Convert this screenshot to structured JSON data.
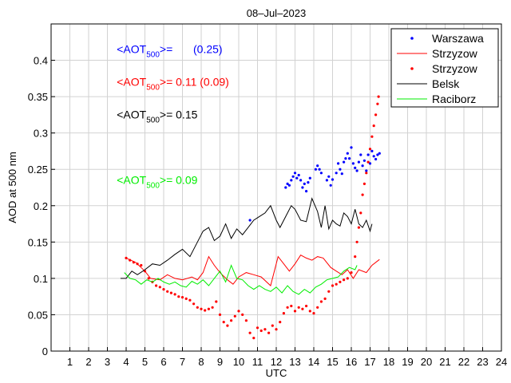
{
  "chart_data": {
    "type": "line",
    "title": "08–Jul–2023",
    "xlabel": "UTC",
    "ylabel": "AOD at 500 nm",
    "xlim": [
      0,
      24
    ],
    "ylim": [
      0,
      0.45
    ],
    "x_ticks": [
      1,
      2,
      3,
      4,
      5,
      6,
      7,
      8,
      9,
      10,
      11,
      12,
      13,
      14,
      15,
      16,
      17,
      18,
      19,
      20,
      21,
      22,
      23,
      24
    ],
    "y_ticks": [
      0,
      0.05,
      0.1,
      0.15,
      0.2,
      0.25,
      0.3,
      0.35,
      0.4
    ],
    "grid": true,
    "legend_position": "top-right",
    "annotations": [
      {
        "prefix": "<AOT",
        "sub": "500",
        "suffix": ">=",
        "value": "(0.25)",
        "color": "#0000ff",
        "x": 3.5,
        "y": 0.41
      },
      {
        "prefix": "<AOT",
        "sub": "500",
        "suffix": ">= 0.11 (0.09)",
        "value": "",
        "color": "#ff0000",
        "x": 3.5,
        "y": 0.365
      },
      {
        "prefix": "<AOT",
        "sub": "500",
        "suffix": ">= 0.15",
        "value": "",
        "color": "#000000",
        "x": 3.5,
        "y": 0.32
      },
      {
        "prefix": "<AOT",
        "sub": "500",
        "suffix": ">= 0.09",
        "value": "",
        "color": "#00ee00",
        "x": 3.5,
        "y": 0.23
      }
    ],
    "series": [
      {
        "name": "Warszawa",
        "style": "dots",
        "color": "#0000ff",
        "points": [
          [
            10.6,
            0.18
          ],
          [
            12.5,
            0.225
          ],
          [
            12.6,
            0.23
          ],
          [
            12.7,
            0.228
          ],
          [
            12.8,
            0.235
          ],
          [
            12.9,
            0.24
          ],
          [
            13.0,
            0.245
          ],
          [
            13.1,
            0.238
          ],
          [
            13.2,
            0.242
          ],
          [
            13.3,
            0.235
          ],
          [
            13.4,
            0.225
          ],
          [
            13.5,
            0.23
          ],
          [
            13.6,
            0.22
          ],
          [
            13.7,
            0.232
          ],
          [
            13.8,
            0.238
          ],
          [
            14.1,
            0.25
          ],
          [
            14.2,
            0.255
          ],
          [
            14.3,
            0.25
          ],
          [
            14.4,
            0.245
          ],
          [
            14.7,
            0.235
          ],
          [
            14.8,
            0.24
          ],
          [
            14.9,
            0.228
          ],
          [
            15.0,
            0.236
          ],
          [
            15.2,
            0.245
          ],
          [
            15.3,
            0.258
          ],
          [
            15.4,
            0.25
          ],
          [
            15.5,
            0.244
          ],
          [
            15.6,
            0.26
          ],
          [
            15.7,
            0.265
          ],
          [
            15.8,
            0.272
          ],
          [
            15.9,
            0.265
          ],
          [
            16.0,
            0.28
          ],
          [
            16.1,
            0.258
          ],
          [
            16.2,
            0.252
          ],
          [
            16.3,
            0.248
          ],
          [
            16.4,
            0.26
          ],
          [
            16.5,
            0.27
          ],
          [
            16.6,
            0.255
          ],
          [
            16.7,
            0.262
          ],
          [
            16.8,
            0.248
          ],
          [
            16.9,
            0.27
          ],
          [
            17.0,
            0.258
          ],
          [
            17.1,
            0.275
          ],
          [
            17.2,
            0.268
          ],
          [
            17.3,
            0.264
          ],
          [
            17.4,
            0.27
          ],
          [
            17.5,
            0.272
          ]
        ]
      },
      {
        "name": "Strzyzow",
        "style": "line",
        "color": "#ff0000",
        "points": [
          [
            4.0,
            0.128
          ],
          [
            4.5,
            0.122
          ],
          [
            5.0,
            0.11
          ],
          [
            5.3,
            0.1
          ],
          [
            5.8,
            0.098
          ],
          [
            6.2,
            0.105
          ],
          [
            6.6,
            0.1
          ],
          [
            7.0,
            0.098
          ],
          [
            7.5,
            0.102
          ],
          [
            7.8,
            0.098
          ],
          [
            8.1,
            0.108
          ],
          [
            8.4,
            0.13
          ],
          [
            8.7,
            0.118
          ],
          [
            9.0,
            0.108
          ],
          [
            9.4,
            0.098
          ],
          [
            9.7,
            0.092
          ],
          [
            10.0,
            0.102
          ],
          [
            10.4,
            0.108
          ],
          [
            10.8,
            0.105
          ],
          [
            11.2,
            0.102
          ],
          [
            11.7,
            0.09
          ],
          [
            12.1,
            0.13
          ],
          [
            12.4,
            0.12
          ],
          [
            12.7,
            0.11
          ],
          [
            13.0,
            0.12
          ],
          [
            13.3,
            0.132
          ],
          [
            13.6,
            0.128
          ],
          [
            13.9,
            0.125
          ],
          [
            14.2,
            0.13
          ],
          [
            14.5,
            0.128
          ],
          [
            14.9,
            0.115
          ],
          [
            15.2,
            0.11
          ],
          [
            15.5,
            0.105
          ],
          [
            15.8,
            0.112
          ],
          [
            16.1,
            0.1
          ],
          [
            16.4,
            0.112
          ],
          [
            16.8,
            0.108
          ],
          [
            17.1,
            0.118
          ],
          [
            17.5,
            0.126
          ]
        ]
      },
      {
        "name": "Strzyzow",
        "style": "dots",
        "color": "#ff0000",
        "points": [
          [
            4.0,
            0.128
          ],
          [
            4.2,
            0.125
          ],
          [
            4.4,
            0.122
          ],
          [
            4.6,
            0.12
          ],
          [
            4.8,
            0.118
          ],
          [
            5.0,
            0.11
          ],
          [
            5.2,
            0.1
          ],
          [
            5.4,
            0.095
          ],
          [
            5.6,
            0.09
          ],
          [
            5.8,
            0.088
          ],
          [
            6.0,
            0.085
          ],
          [
            6.2,
            0.082
          ],
          [
            6.4,
            0.08
          ],
          [
            6.6,
            0.078
          ],
          [
            6.8,
            0.075
          ],
          [
            7.0,
            0.074
          ],
          [
            7.2,
            0.072
          ],
          [
            7.4,
            0.07
          ],
          [
            7.6,
            0.065
          ],
          [
            7.8,
            0.06
          ],
          [
            8.0,
            0.058
          ],
          [
            8.2,
            0.056
          ],
          [
            8.4,
            0.058
          ],
          [
            8.6,
            0.06
          ],
          [
            8.8,
            0.068
          ],
          [
            9.0,
            0.05
          ],
          [
            9.2,
            0.04
          ],
          [
            9.4,
            0.035
          ],
          [
            9.6,
            0.042
          ],
          [
            9.8,
            0.048
          ],
          [
            10.0,
            0.055
          ],
          [
            10.2,
            0.05
          ],
          [
            10.4,
            0.042
          ],
          [
            10.6,
            0.025
          ],
          [
            10.8,
            0.018
          ],
          [
            11.0,
            0.032
          ],
          [
            11.2,
            0.028
          ],
          [
            11.4,
            0.03
          ],
          [
            11.6,
            0.025
          ],
          [
            11.8,
            0.035
          ],
          [
            12.0,
            0.03
          ],
          [
            12.2,
            0.04
          ],
          [
            12.4,
            0.052
          ],
          [
            12.6,
            0.06
          ],
          [
            12.8,
            0.062
          ],
          [
            13.0,
            0.055
          ],
          [
            13.2,
            0.06
          ],
          [
            13.4,
            0.058
          ],
          [
            13.6,
            0.062
          ],
          [
            13.8,
            0.055
          ],
          [
            14.0,
            0.052
          ],
          [
            14.2,
            0.06
          ],
          [
            14.4,
            0.068
          ],
          [
            14.6,
            0.072
          ],
          [
            14.8,
            0.082
          ],
          [
            15.0,
            0.09
          ],
          [
            15.2,
            0.092
          ],
          [
            15.4,
            0.095
          ],
          [
            15.6,
            0.098
          ],
          [
            15.8,
            0.1
          ],
          [
            16.0,
            0.108
          ],
          [
            16.2,
            0.13
          ],
          [
            16.3,
            0.15
          ],
          [
            16.4,
            0.17
          ],
          [
            16.5,
            0.19
          ],
          [
            16.6,
            0.215
          ],
          [
            16.7,
            0.23
          ],
          [
            16.8,
            0.245
          ],
          [
            16.9,
            0.26
          ],
          [
            17.0,
            0.278
          ],
          [
            17.1,
            0.295
          ],
          [
            17.2,
            0.31
          ],
          [
            17.3,
            0.325
          ],
          [
            17.4,
            0.34
          ],
          [
            17.45,
            0.35
          ]
        ]
      },
      {
        "name": "Belsk",
        "style": "line",
        "color": "#000000",
        "points": [
          [
            3.7,
            0.1
          ],
          [
            4.0,
            0.1
          ],
          [
            4.3,
            0.11
          ],
          [
            4.6,
            0.105
          ],
          [
            5.0,
            0.112
          ],
          [
            5.4,
            0.12
          ],
          [
            5.8,
            0.118
          ],
          [
            6.2,
            0.125
          ],
          [
            6.6,
            0.133
          ],
          [
            7.0,
            0.14
          ],
          [
            7.4,
            0.13
          ],
          [
            7.8,
            0.15
          ],
          [
            8.1,
            0.165
          ],
          [
            8.4,
            0.17
          ],
          [
            8.7,
            0.152
          ],
          [
            9.0,
            0.158
          ],
          [
            9.3,
            0.175
          ],
          [
            9.6,
            0.155
          ],
          [
            9.9,
            0.168
          ],
          [
            10.2,
            0.16
          ],
          [
            10.5,
            0.17
          ],
          [
            10.8,
            0.18
          ],
          [
            11.1,
            0.185
          ],
          [
            11.4,
            0.19
          ],
          [
            11.7,
            0.2
          ],
          [
            12.0,
            0.18
          ],
          [
            12.2,
            0.17
          ],
          [
            12.5,
            0.185
          ],
          [
            12.8,
            0.2
          ],
          [
            13.0,
            0.195
          ],
          [
            13.3,
            0.18
          ],
          [
            13.6,
            0.178
          ],
          [
            13.9,
            0.21
          ],
          [
            14.2,
            0.192
          ],
          [
            14.4,
            0.17
          ],
          [
            14.6,
            0.2
          ],
          [
            14.8,
            0.168
          ],
          [
            15.0,
            0.18
          ],
          [
            15.2,
            0.175
          ],
          [
            15.4,
            0.172
          ],
          [
            15.6,
            0.19
          ],
          [
            15.8,
            0.185
          ],
          [
            16.0,
            0.175
          ],
          [
            16.2,
            0.195
          ],
          [
            16.4,
            0.175
          ],
          [
            16.6,
            0.17
          ],
          [
            16.8,
            0.18
          ],
          [
            17.0,
            0.165
          ],
          [
            17.1,
            0.175
          ]
        ]
      },
      {
        "name": "Raciborz",
        "style": "line",
        "color": "#00ee00",
        "points": [
          [
            3.9,
            0.108
          ],
          [
            4.2,
            0.1
          ],
          [
            4.5,
            0.098
          ],
          [
            4.8,
            0.092
          ],
          [
            5.1,
            0.098
          ],
          [
            5.4,
            0.095
          ],
          [
            5.7,
            0.1
          ],
          [
            6.0,
            0.095
          ],
          [
            6.3,
            0.092
          ],
          [
            6.6,
            0.095
          ],
          [
            6.9,
            0.09
          ],
          [
            7.2,
            0.088
          ],
          [
            7.5,
            0.096
          ],
          [
            7.8,
            0.092
          ],
          [
            8.1,
            0.098
          ],
          [
            8.4,
            0.09
          ],
          [
            8.7,
            0.1
          ],
          [
            9.0,
            0.11
          ],
          [
            9.3,
            0.095
          ],
          [
            9.6,
            0.118
          ],
          [
            9.9,
            0.1
          ],
          [
            10.2,
            0.098
          ],
          [
            10.5,
            0.09
          ],
          [
            10.8,
            0.085
          ],
          [
            11.1,
            0.09
          ],
          [
            11.4,
            0.085
          ],
          [
            11.7,
            0.082
          ],
          [
            12.0,
            0.088
          ],
          [
            12.3,
            0.08
          ],
          [
            12.6,
            0.09
          ],
          [
            12.9,
            0.082
          ],
          [
            13.2,
            0.078
          ],
          [
            13.5,
            0.085
          ],
          [
            13.8,
            0.08
          ],
          [
            14.1,
            0.088
          ],
          [
            14.4,
            0.092
          ],
          [
            14.7,
            0.098
          ],
          [
            15.0,
            0.1
          ],
          [
            15.3,
            0.102
          ],
          [
            15.6,
            0.11
          ],
          [
            15.9,
            0.115
          ],
          [
            16.2,
            0.112
          ],
          [
            16.3,
            0.118
          ]
        ]
      }
    ]
  }
}
